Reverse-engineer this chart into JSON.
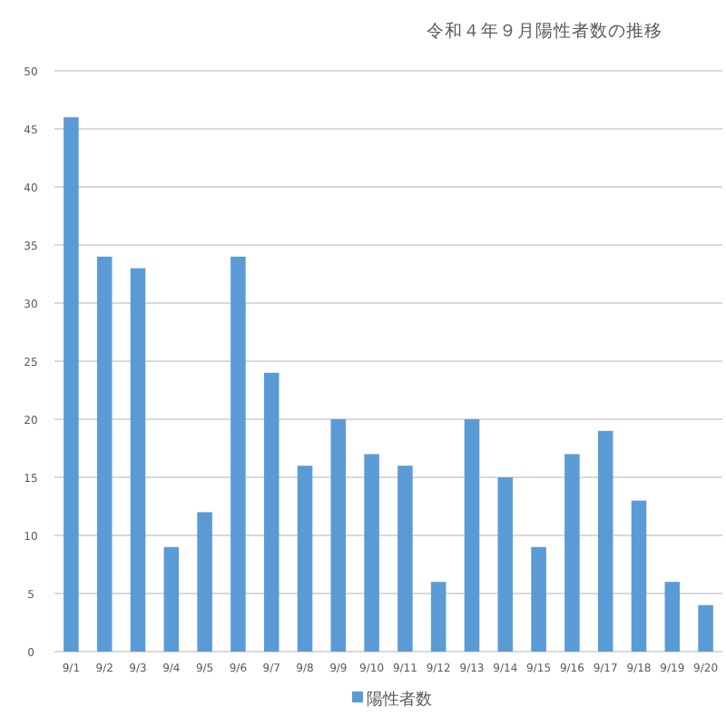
{
  "chart_data": {
    "type": "bar",
    "title": "令和４年９月陽性者数の推移",
    "categories": [
      "9/1",
      "9/2",
      "9/3",
      "9/4",
      "9/5",
      "9/6",
      "9/7",
      "9/8",
      "9/9",
      "9/10",
      "9/11",
      "9/12",
      "9/13",
      "9/14",
      "9/15",
      "9/16",
      "9/17",
      "9/18",
      "9/19",
      "9/20"
    ],
    "series": [
      {
        "name": "陽性者数",
        "color": "#5b9bd5",
        "values": [
          46,
          34,
          33,
          9,
          12,
          34,
          24,
          16,
          20,
          17,
          16,
          6,
          20,
          15,
          9,
          17,
          19,
          13,
          6,
          4
        ]
      }
    ],
    "ylim": [
      0,
      50
    ],
    "yticks": [
      0,
      5,
      10,
      15,
      20,
      25,
      30,
      35,
      40,
      45,
      50
    ],
    "grid": "y",
    "legend": "bottom"
  }
}
